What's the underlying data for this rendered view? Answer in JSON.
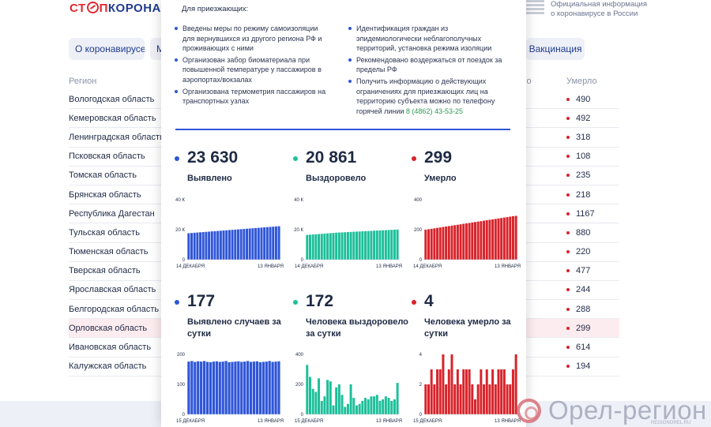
{
  "header": {
    "logo_part1": "СТ",
    "logo_part2": "П",
    "logo_part3": "КОРОНАВИ",
    "gov_text_line1": "Официальная информация",
    "gov_text_line2": "о коронавирусе в России"
  },
  "nav": {
    "about": "О коронавирусе ▾",
    "m": "М",
    "vaccination": "Вакцинация"
  },
  "table": {
    "col_region": "Регион",
    "col_partial": "ло",
    "col_died": "Умерло",
    "rows": [
      {
        "region": "Вологодская область",
        "died": "490"
      },
      {
        "region": "Кемеровская область",
        "died": "492"
      },
      {
        "region": "Ленинградская область",
        "died": "318"
      },
      {
        "region": "Псковская область",
        "died": "108"
      },
      {
        "region": "Томская область",
        "died": "235"
      },
      {
        "region": "Брянская область",
        "died": "218"
      },
      {
        "region": "Республика Дагестан",
        "died": "1167"
      },
      {
        "region": "Тульская область",
        "died": "880"
      },
      {
        "region": "Тюменская область",
        "died": "220"
      },
      {
        "region": "Тверская область",
        "died": "477"
      },
      {
        "region": "Ярославская область",
        "died": "244"
      },
      {
        "region": "Белгородская область",
        "died": "288"
      },
      {
        "region": "Орловская область",
        "died": "299"
      },
      {
        "region": "Ивановская область",
        "died": "614"
      },
      {
        "region": "Калужская область",
        "died": "194"
      }
    ]
  },
  "panel": {
    "intro_title": "Для приезжающих:",
    "left_bullets": [
      "Введены меры по режиму самоизоляции для вернувшихся из другого региона РФ и проживающих с ними",
      "Организован забор биоматериала при повышенной температуре у пассажиров в аэропортах/вокзалах",
      "Организована термометрия пассажиров на транспортных узлах"
    ],
    "right_bullets": [
      "Идентификация граждан из эпидемиологически неблагополучных территорий, установка режима изоляции",
      "Рекомендовано воздержаться от поездок за пределы РФ"
    ],
    "phone_bullet_text": "Получить информацию о действующих ограничениях для приезжающих лиц на территорию субъекта можно по телефону горячей линии",
    "phone": "8 (4862) 43-53-25"
  },
  "colors": {
    "blue": "#2f56d8",
    "teal": "#1dbf9a",
    "red": "#d8232a"
  },
  "stats": [
    {
      "value": "23 630",
      "label": "Выявлено"
    },
    {
      "value": "20 861",
      "label": "Выздоровело"
    },
    {
      "value": "299",
      "label": "Умерло"
    },
    {
      "value": "177",
      "label": "Выявлено случаев за сутки"
    },
    {
      "value": "172",
      "label": "Человека выздоровело за сутки"
    },
    {
      "value": "4",
      "label": "Человека умерло за сутки"
    }
  ],
  "chart_data": [
    {
      "type": "bar",
      "color": "#2f56d8",
      "title": "Выявлено",
      "ylim": [
        0,
        40000
      ],
      "y_ticks": [
        "0",
        "20 К",
        "40 К"
      ],
      "x_start": "14 ДЕКАБРЯ",
      "x_end": "13 ЯНВАРЯ",
      "values": [
        17600,
        17800,
        17950,
        18100,
        18250,
        18400,
        18550,
        18700,
        18850,
        19000,
        19150,
        19300,
        19450,
        19600,
        19750,
        19900,
        20050,
        20200,
        20350,
        20500,
        20650,
        20800,
        20950,
        21100,
        21250,
        21400,
        21550,
        21700,
        21850,
        22000,
        22150,
        22300
      ]
    },
    {
      "type": "bar",
      "color": "#1dbf9a",
      "title": "Выздоровело",
      "ylim": [
        0,
        40000
      ],
      "y_ticks": [
        "0",
        "20 К",
        "40 К"
      ],
      "x_start": "14 ДЕКАБРЯ",
      "x_end": "13 ЯНВАРЯ",
      "values": [
        16500,
        16650,
        16800,
        16950,
        17100,
        17250,
        17400,
        17550,
        17700,
        17850,
        18000,
        18100,
        18200,
        18300,
        18400,
        18500,
        18600,
        18700,
        18800,
        18900,
        19000,
        19100,
        19200,
        19300,
        19400,
        19500,
        19600,
        19700,
        19800,
        19900,
        20000,
        20100
      ]
    },
    {
      "type": "bar",
      "color": "#d8232a",
      "title": "Умерло",
      "ylim": [
        0,
        400
      ],
      "y_ticks": [
        "0",
        "200",
        "400"
      ],
      "x_start": "14 ДЕКАБРЯ",
      "x_end": "13 ЯНВАРЯ",
      "values": [
        200,
        203,
        206,
        209,
        212,
        215,
        218,
        221,
        224,
        227,
        230,
        233,
        236,
        239,
        242,
        245,
        248,
        251,
        254,
        257,
        260,
        263,
        266,
        269,
        272,
        275,
        278,
        281,
        284,
        287,
        290,
        292
      ]
    },
    {
      "type": "bar",
      "color": "#2f56d8",
      "title": "Выявлено случаев за сутки",
      "ylim": [
        0,
        200
      ],
      "y_ticks": [
        "0",
        "100",
        "200"
      ],
      "x_start": "15 ДЕКАБРЯ",
      "x_end": "13 ЯНВАРЯ",
      "values": [
        176,
        178,
        175,
        177,
        176,
        178,
        175,
        174,
        176,
        177,
        175,
        176,
        178,
        174,
        175,
        176,
        177,
        175,
        176,
        178,
        175,
        176,
        177,
        174,
        175,
        176,
        178,
        175,
        176,
        177
      ]
    },
    {
      "type": "bar",
      "color": "#1dbf9a",
      "title": "Человека выздоровело за сутки",
      "ylim": [
        0,
        400
      ],
      "y_ticks": [
        "0",
        "200",
        "400"
      ],
      "x_start": "15 ДЕКАБРЯ",
      "x_end": "13 ЯНВАРЯ",
      "values": [
        330,
        250,
        170,
        150,
        240,
        90,
        120,
        230,
        220,
        60,
        180,
        200,
        130,
        50,
        70,
        200,
        110,
        60,
        70,
        90,
        110,
        100,
        120,
        120,
        130,
        90,
        100,
        120,
        110,
        90,
        100,
        210
      ]
    },
    {
      "type": "bar",
      "color": "#d8232a",
      "title": "Человека умерло за сутки",
      "ylim": [
        0,
        4
      ],
      "y_ticks": [
        "0",
        "2",
        "4"
      ],
      "x_start": "15 ДЕКАБРЯ",
      "x_end": "13 ЯНВАРЯ",
      "values": [
        2,
        2,
        3,
        2,
        3,
        3,
        4,
        2,
        3,
        4,
        2,
        3,
        2,
        3,
        3,
        3,
        2,
        1,
        2,
        3,
        2,
        3,
        2,
        3,
        2,
        3,
        3,
        3,
        2,
        2,
        3,
        4
      ]
    }
  ],
  "watermark": {
    "text": "Орел-регион",
    "sub": "REGIONOREL.RU"
  }
}
